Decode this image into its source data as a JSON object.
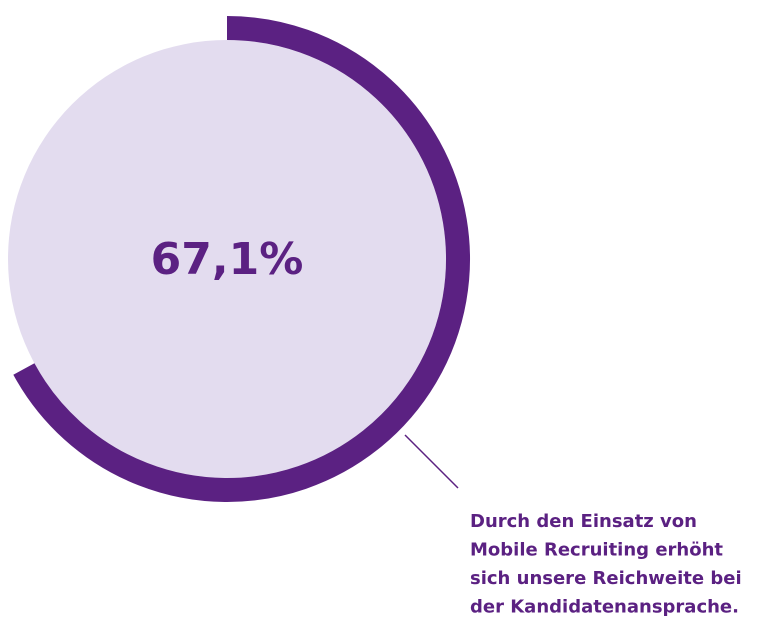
{
  "chart_data": {
    "type": "gauge",
    "values": [
      67.1
    ],
    "value_labels": [
      "67,1%"
    ],
    "ylim": [
      0,
      100
    ],
    "color": "#5b2182",
    "track_color": "#e3dcef",
    "annotation": [
      "Durch den Einsatz von",
      "Mobile Recruiting erhöht",
      "sich unsere Reichweite bei",
      "der Kandidatenansprache."
    ]
  }
}
